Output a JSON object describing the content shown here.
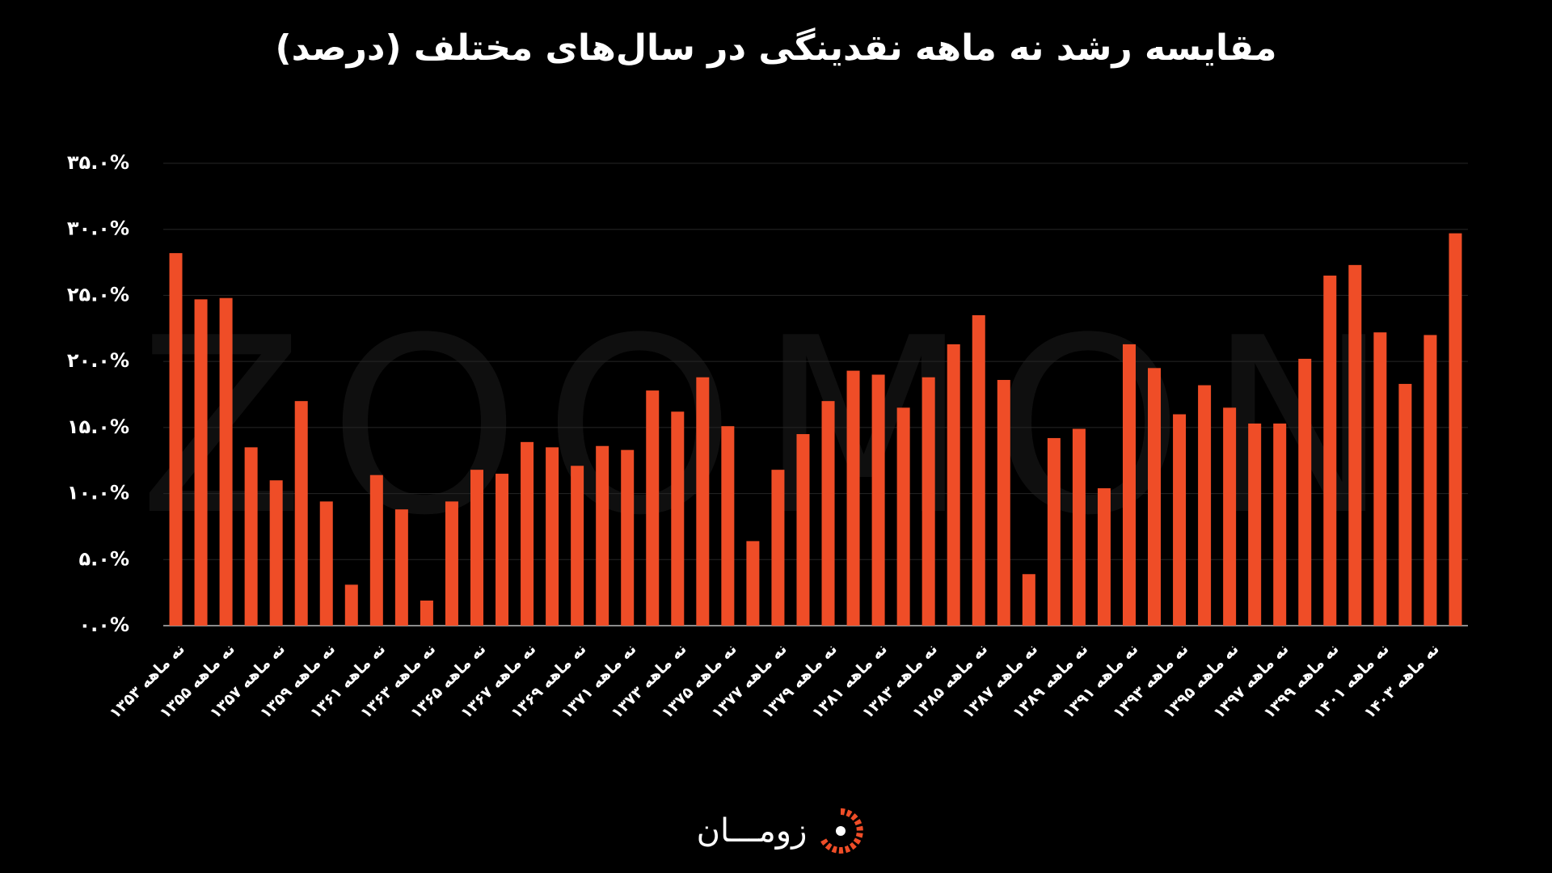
{
  "chart_data": {
    "type": "bar",
    "title": "مقایسه رشد نه ماهه نقدینگی در سال‌های مختلف (درصد)",
    "categories": [
      "نه ماهه ۱۳۵۳",
      null,
      "نه ماهه ۱۳۵۵",
      null,
      "نه ماهه ۱۳۵۷",
      null,
      "نه ماهه ۱۳۵۹",
      null,
      "نه ماهه ۱۳۶۱",
      null,
      "نه ماهه ۱۳۶۳",
      null,
      "نه ماهه ۱۳۶۵",
      null,
      "نه ماهه ۱۳۶۷",
      null,
      "نه ماهه ۱۳۶۹",
      null,
      "نه ماهه ۱۳۷۱",
      null,
      "نه ماهه ۱۳۷۳",
      null,
      "نه ماهه ۱۳۷۵",
      null,
      "نه ماهه ۱۳۷۷",
      null,
      "نه ماهه ۱۳۷۹",
      null,
      "نه ماهه ۱۳۸۱",
      null,
      "نه ماهه ۱۳۸۳",
      null,
      "نه ماهه ۱۳۸۵",
      null,
      "نه ماهه ۱۳۸۷",
      null,
      "نه ماهه ۱۳۸۹",
      null,
      "نه ماهه ۱۳۹۱",
      null,
      "نه ماهه ۱۳۹۳",
      null,
      "نه ماهه ۱۳۹۵",
      null,
      "نه ماهه ۱۳۹۷",
      null,
      "نه ماهه ۱۳۹۹",
      null,
      "نه ماهه ۱۴۰۱",
      null,
      "نه ماهه ۱۴۰۳",
      null
    ],
    "values": [
      28.2,
      24.7,
      24.8,
      13.5,
      11.0,
      17.0,
      9.4,
      3.1,
      11.4,
      8.8,
      1.9,
      9.4,
      11.8,
      11.5,
      13.9,
      13.5,
      12.1,
      13.6,
      13.3,
      17.8,
      16.2,
      18.8,
      15.1,
      6.4,
      11.8,
      14.5,
      17.0,
      19.3,
      19.0,
      16.5,
      18.8,
      21.3,
      23.5,
      18.6,
      3.9,
      14.2,
      14.9,
      10.4,
      21.3,
      19.5,
      16.0,
      18.2,
      16.5,
      15.3,
      15.3,
      20.2,
      26.5,
      27.3,
      22.2,
      18.3,
      22.0,
      29.7
    ],
    "color": "#ef4d27",
    "ylim": [
      0,
      35
    ],
    "yticks": [
      {
        "value": 0,
        "label": "۰.۰%"
      },
      {
        "value": 5,
        "label": "۵.۰%"
      },
      {
        "value": 10,
        "label": "۱۰.۰%"
      },
      {
        "value": 15,
        "label": "۱۵.۰%"
      },
      {
        "value": 20,
        "label": "۲۰.۰%"
      },
      {
        "value": 25,
        "label": "۲۵.۰%"
      },
      {
        "value": 30,
        "label": "۳۰.۰%"
      },
      {
        "value": 35,
        "label": "۳۵.۰%"
      }
    ],
    "grid": true,
    "watermark": "ZOOMON",
    "logo": "زومـــان"
  }
}
